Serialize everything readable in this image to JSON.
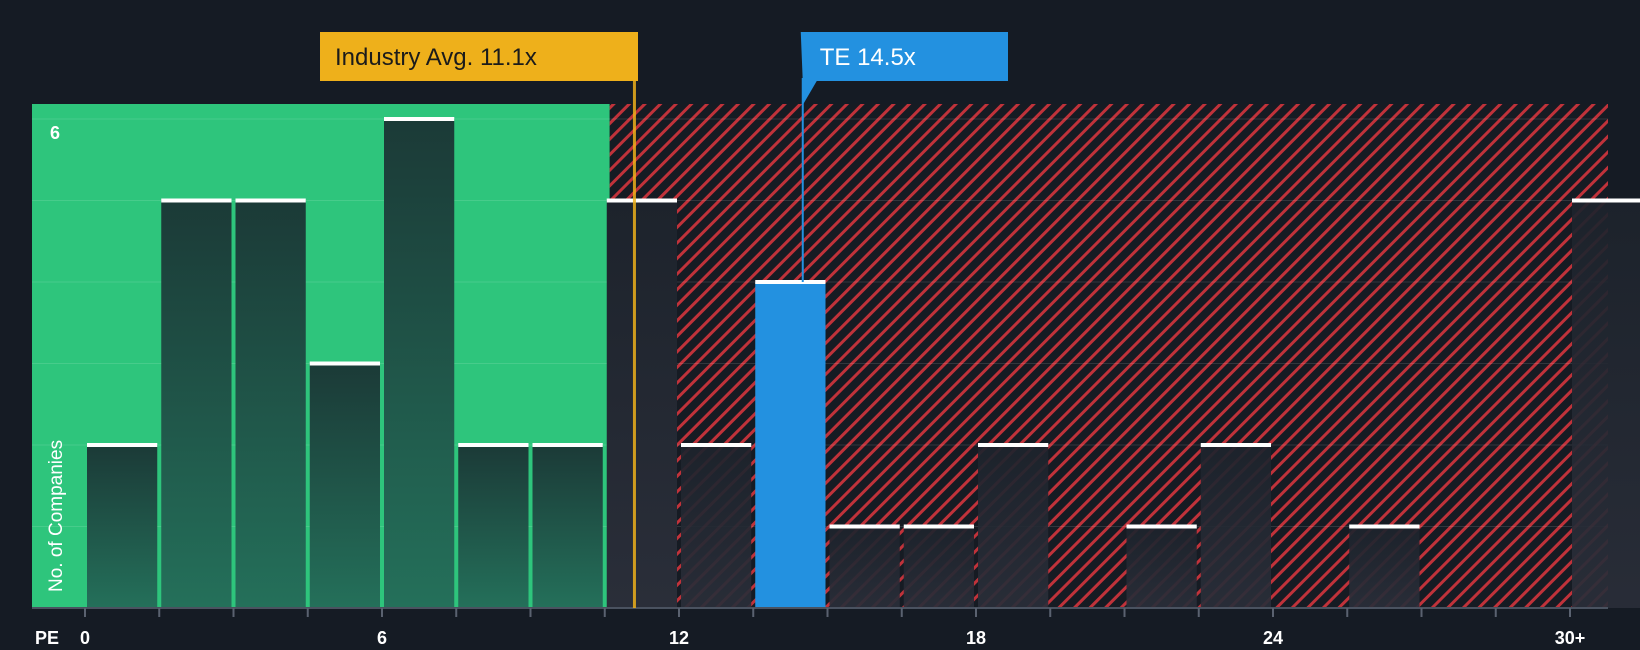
{
  "chart_data": {
    "type": "bar",
    "title": "",
    "xlabel": "PE",
    "ylabel": "No. of Companies",
    "x_tick_labels": [
      "0",
      "6",
      "12",
      "18",
      "24",
      "30+"
    ],
    "x_tick_values": [
      0,
      6,
      12,
      18,
      24,
      30
    ],
    "y_tick_labels": [
      "6"
    ],
    "xlim": [
      0,
      30.5
    ],
    "ylim": [
      0,
      6.2
    ],
    "bin_width": 1.5,
    "bins": [
      {
        "x0": 0,
        "count": 2
      },
      {
        "x0": 1.5,
        "count": 5
      },
      {
        "x0": 3,
        "count": 5
      },
      {
        "x0": 4.5,
        "count": 3
      },
      {
        "x0": 6,
        "count": 6
      },
      {
        "x0": 7.5,
        "count": 2
      },
      {
        "x0": 9,
        "count": 2
      },
      {
        "x0": 10.5,
        "count": 5
      },
      {
        "x0": 12,
        "count": 2
      },
      {
        "x0": 13.5,
        "count": 4,
        "highlight": true
      },
      {
        "x0": 15,
        "count": 1
      },
      {
        "x0": 16.5,
        "count": 1
      },
      {
        "x0": 18,
        "count": 2
      },
      {
        "x0": 19.5,
        "count": 0
      },
      {
        "x0": 21,
        "count": 1
      },
      {
        "x0": 22.5,
        "count": 2
      },
      {
        "x0": 24,
        "count": 0
      },
      {
        "x0": 25.5,
        "count": 1
      },
      {
        "x0": 27,
        "count": 0
      },
      {
        "x0": 28.5,
        "count": 0
      },
      {
        "x0": 30,
        "count": 5
      }
    ],
    "industry_avg": {
      "label": "Industry Avg. 11.1x",
      "value": 11.1
    },
    "company": {
      "label": "TE 14.5x",
      "value": 14.5
    },
    "fair_zone_end": 10.6,
    "colors": {
      "background": "#151b24",
      "fair": "#2ec57c",
      "expensive": "#c0323a",
      "bar_dark": "#1f2a36",
      "highlight": "#2391e0",
      "industry": "#eeb01b",
      "cap": "#ffffff"
    }
  }
}
